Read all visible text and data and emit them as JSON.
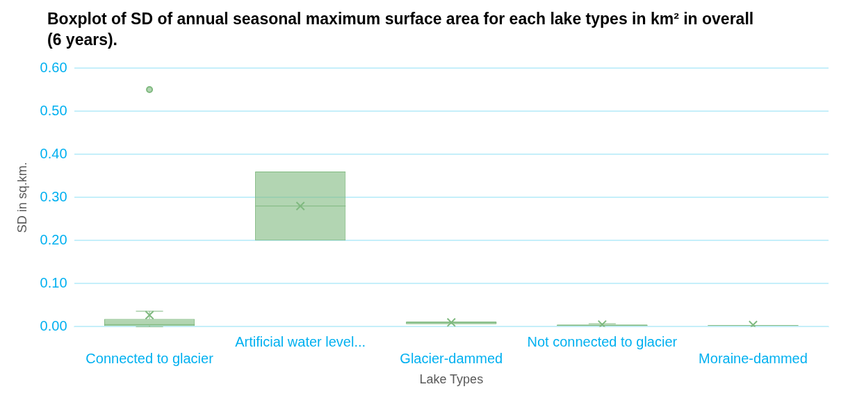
{
  "chart_data": {
    "type": "box",
    "title": "Boxplot of SD of annual seasonal maximum surface area for each lake types in km² in overall (6 years).",
    "xlabel": "Lake Types",
    "ylabel": "SD in sq.km.",
    "categories": [
      "Connected to glacier",
      "Artificial water level...",
      "Glacier-dammed",
      "Not connected to glacier",
      "Moraine-dammed"
    ],
    "boxes": [
      {
        "low": 0,
        "q1": 0.002,
        "median": 0.005,
        "q3": 0.018,
        "high": 0.036,
        "mean": 0.027,
        "outliers": [
          0.55
        ]
      },
      {
        "low": 0.2,
        "q1": 0.2,
        "median": 0.28,
        "q3": 0.36,
        "high": 0.36,
        "mean": 0.28
      },
      {
        "low": 0.006,
        "q1": 0.006,
        "median": 0.009,
        "q3": 0.012,
        "high": 0.012,
        "mean": 0.01
      },
      {
        "low": 0.002,
        "q1": 0.002,
        "median": 0.003,
        "q3": 0.005,
        "high": 0.007,
        "mean": 0.005
      },
      {
        "low": 0.003,
        "q1": 0.003,
        "median": 0.003,
        "q3": 0.003,
        "high": 0.003,
        "mean": 0.004
      }
    ],
    "color": "#7fb97f",
    "ylim": [
      0,
      0.6
    ],
    "yticks": [
      {
        "value": 0,
        "label": "0.00"
      },
      {
        "value": 0.1,
        "label": "0.10"
      },
      {
        "value": 0.2,
        "label": "0.20"
      },
      {
        "value": 0.3,
        "label": "0.30"
      },
      {
        "value": 0.4,
        "label": "0.40"
      },
      {
        "value": 0.5,
        "label": "0.50"
      },
      {
        "value": 0.6,
        "label": "0.60"
      }
    ],
    "grid": "y",
    "legend": false,
    "marker": "circle"
  }
}
